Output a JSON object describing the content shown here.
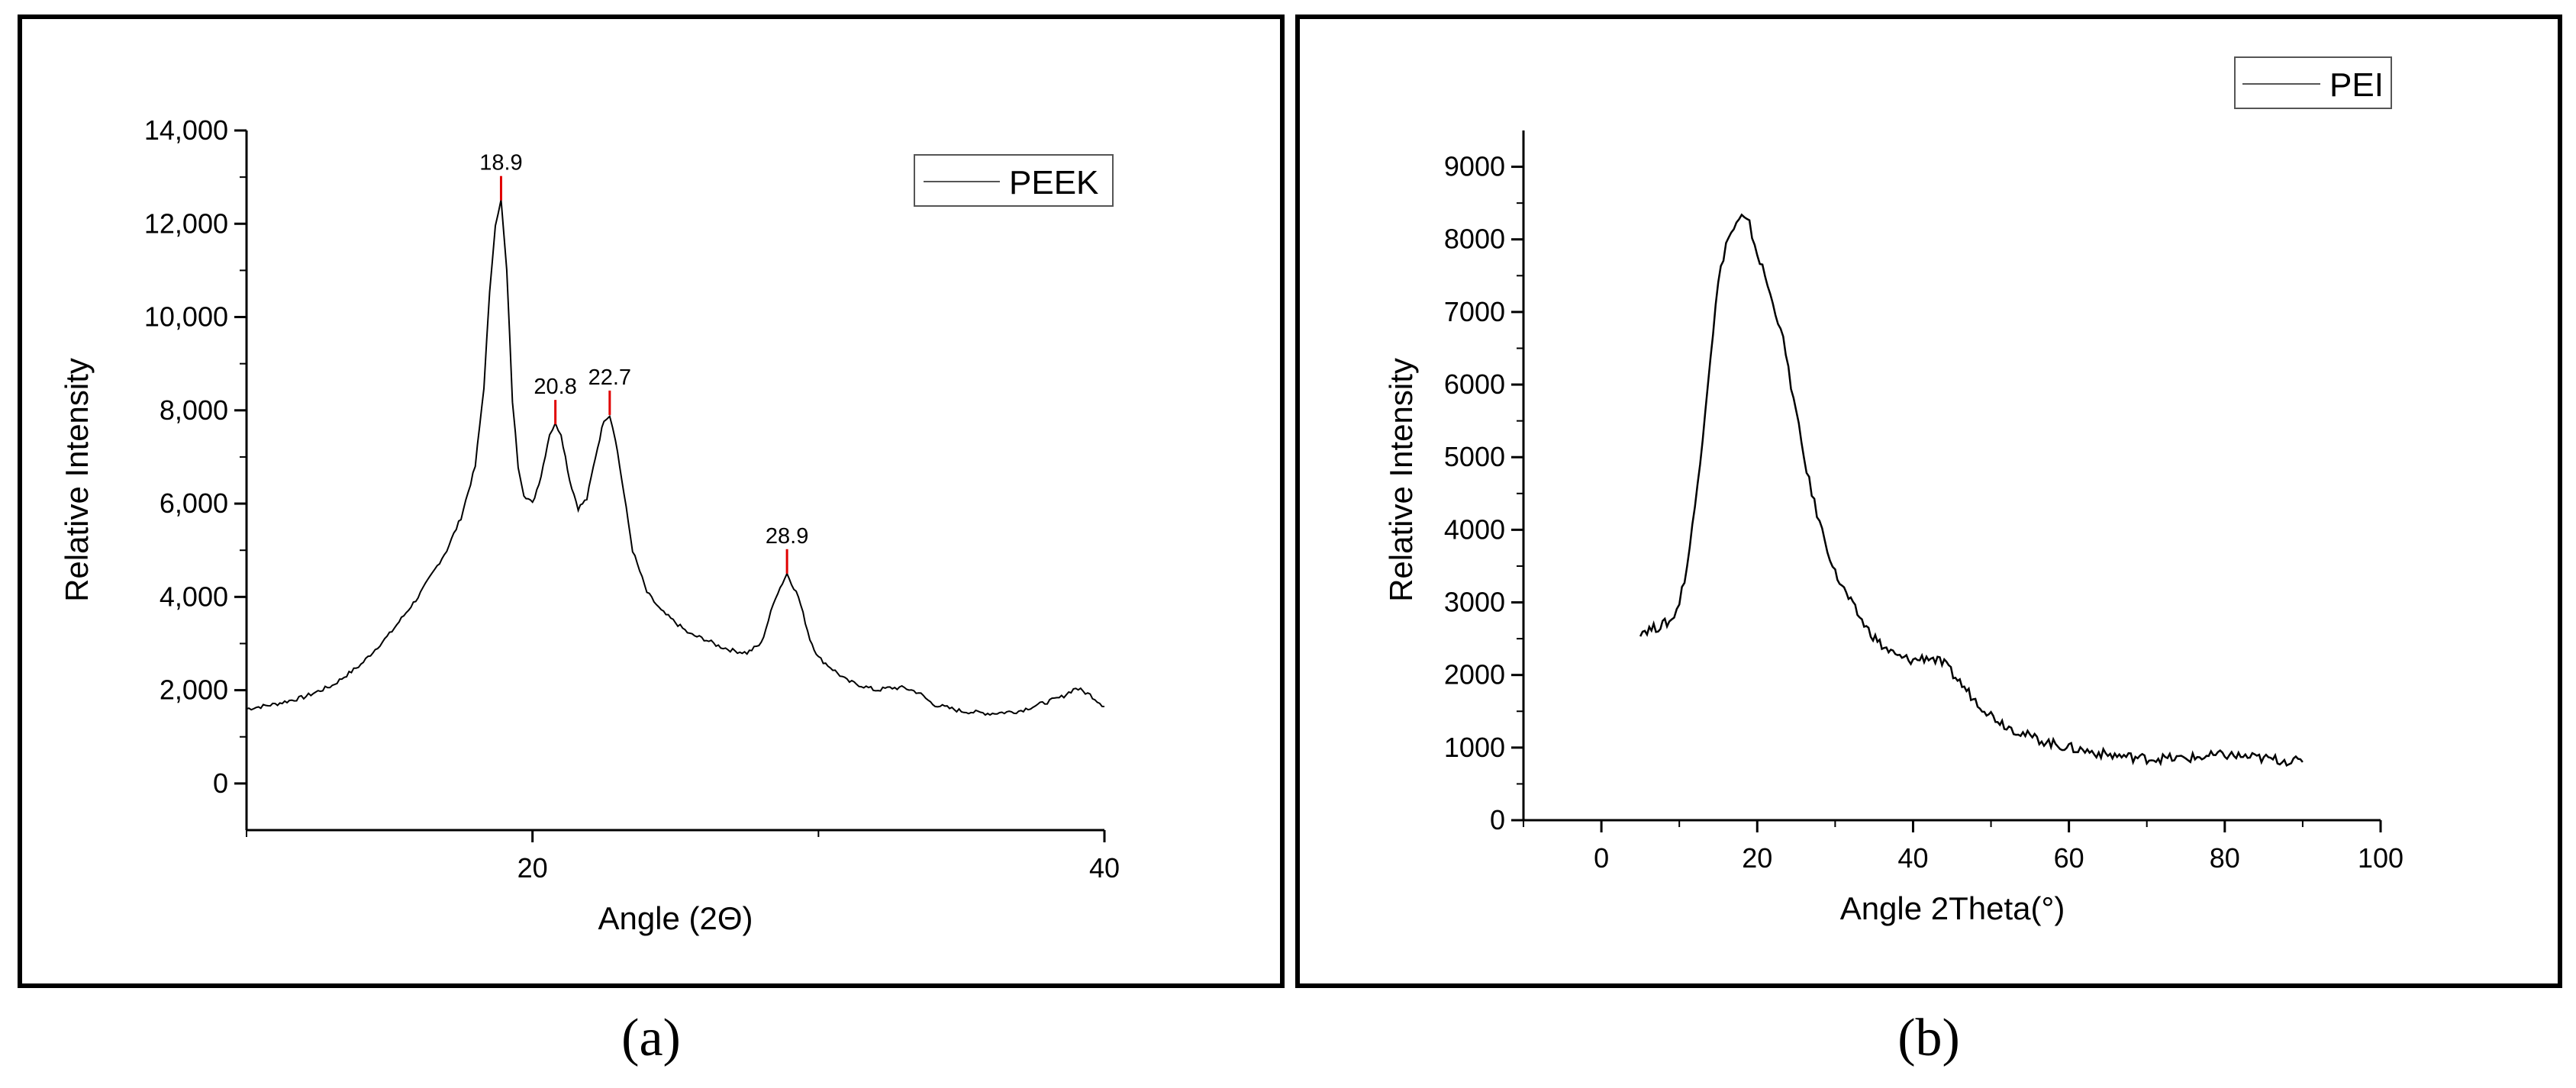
{
  "chart_data": [
    {
      "panel": "(a)",
      "type": "line",
      "xlabel": "Angle (2Θ)",
      "ylabel": "Relative Intensity",
      "xlim": [
        10,
        40
      ],
      "ylim": [
        -1000,
        14000
      ],
      "xticks": [
        20,
        40
      ],
      "yticks": [
        0,
        2000,
        4000,
        6000,
        8000,
        10000,
        12000,
        14000
      ],
      "ytick_labels": [
        "0",
        "2,000",
        "4,000",
        "6,000",
        "8,000",
        "10,000",
        "12,000",
        "14,000"
      ],
      "legend": {
        "position": "top-right",
        "entries": [
          "PEEK"
        ]
      },
      "series": [
        {
          "name": "PEEK",
          "color": "#000000",
          "x": [
            10.0,
            11.0,
            12.0,
            13.0,
            14.0,
            15.0,
            16.0,
            17.0,
            17.5,
            18.0,
            18.3,
            18.5,
            18.7,
            18.9,
            19.1,
            19.3,
            19.5,
            19.7,
            20.0,
            20.3,
            20.6,
            20.8,
            21.0,
            21.3,
            21.6,
            21.9,
            22.2,
            22.5,
            22.7,
            22.9,
            23.2,
            23.5,
            24.0,
            24.5,
            25.0,
            25.5,
            26.0,
            26.5,
            27.0,
            27.5,
            28.0,
            28.5,
            28.9,
            29.3,
            29.7,
            30.0,
            31.0,
            32.0,
            32.5,
            33.0,
            33.5,
            34.0,
            35.0,
            36.0,
            37.0,
            37.5,
            38.0,
            38.5,
            39.0,
            39.5,
            40.0
          ],
          "y": [
            1600,
            1700,
            1850,
            2100,
            2550,
            3200,
            4000,
            5000,
            5700,
            6800,
            8500,
            10500,
            12000,
            12500,
            11000,
            8200,
            6800,
            6200,
            6000,
            6600,
            7500,
            7700,
            7500,
            6500,
            5900,
            6100,
            7000,
            7800,
            7900,
            7400,
            6200,
            5000,
            4100,
            3700,
            3450,
            3200,
            3100,
            2950,
            2850,
            2800,
            3000,
            4000,
            4500,
            4000,
            3100,
            2700,
            2200,
            2000,
            2050,
            2050,
            1950,
            1700,
            1550,
            1500,
            1550,
            1650,
            1750,
            1850,
            2050,
            1900,
            1650
          ]
        }
      ],
      "peak_labels": [
        {
          "x": 18.9,
          "y": 12500,
          "text": "18.9"
        },
        {
          "x": 20.8,
          "y": 7700,
          "text": "20.8"
        },
        {
          "x": 22.7,
          "y": 7900,
          "text": "22.7"
        },
        {
          "x": 28.9,
          "y": 4500,
          "text": "28.9"
        }
      ]
    },
    {
      "panel": "(b)",
      "type": "line",
      "xlabel": "Angle 2Theta(°)",
      "ylabel": "Relative Intensity",
      "xlim": [
        -10,
        100
      ],
      "ylim": [
        0,
        9500
      ],
      "xticks": [
        0,
        20,
        40,
        60,
        80,
        100
      ],
      "yticks": [
        0,
        1000,
        2000,
        3000,
        4000,
        5000,
        6000,
        7000,
        8000,
        9000
      ],
      "ytick_labels": [
        "0",
        "1000",
        "2000",
        "3000",
        "4000",
        "5000",
        "6000",
        "7000",
        "8000",
        "9000"
      ],
      "legend": {
        "position": "top-right",
        "entries": [
          "PEI"
        ]
      },
      "series": [
        {
          "name": "PEI",
          "color": "#000000",
          "x": [
            5,
            7,
            9,
            10,
            11,
            12,
            13,
            14,
            15,
            16,
            17,
            18,
            19,
            20,
            21,
            22,
            23,
            24,
            25,
            26,
            27,
            28,
            29,
            30,
            32,
            34,
            36,
            38,
            40,
            42,
            44,
            46,
            48,
            50,
            52,
            55,
            58,
            60,
            65,
            70,
            75,
            80,
            85,
            90
          ],
          "y": [
            2600,
            2650,
            2750,
            3000,
            3500,
            4300,
            5300,
            6400,
            7400,
            7950,
            8150,
            8300,
            8200,
            7800,
            7500,
            7100,
            6800,
            6200,
            5600,
            5000,
            4500,
            4100,
            3750,
            3400,
            3000,
            2650,
            2400,
            2250,
            2200,
            2250,
            2150,
            1900,
            1650,
            1450,
            1300,
            1150,
            1050,
            1000,
            900,
            850,
            850,
            900,
            850,
            800
          ]
        }
      ]
    }
  ]
}
